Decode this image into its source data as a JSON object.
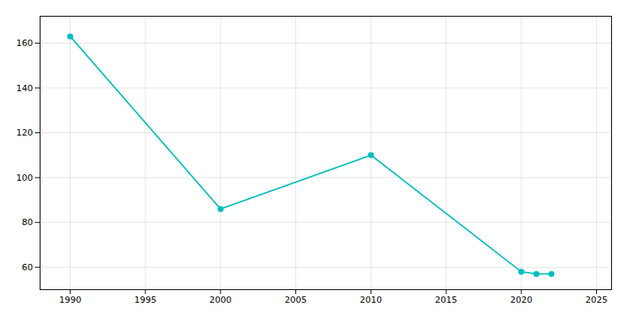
{
  "chart_data": {
    "type": "line",
    "x": [
      1990,
      2000,
      2010,
      2020,
      2021,
      2022
    ],
    "values": [
      163,
      86,
      110,
      58,
      57,
      57
    ],
    "color": "#00BFBF",
    "marker": "circle",
    "xlim": [
      1988,
      2026
    ],
    "ylim": [
      50,
      172
    ],
    "xticks": [
      1990,
      1995,
      2000,
      2005,
      2010,
      2015,
      2020,
      2025
    ],
    "yticks": [
      60,
      80,
      100,
      120,
      140,
      160
    ],
    "grid": true
  }
}
